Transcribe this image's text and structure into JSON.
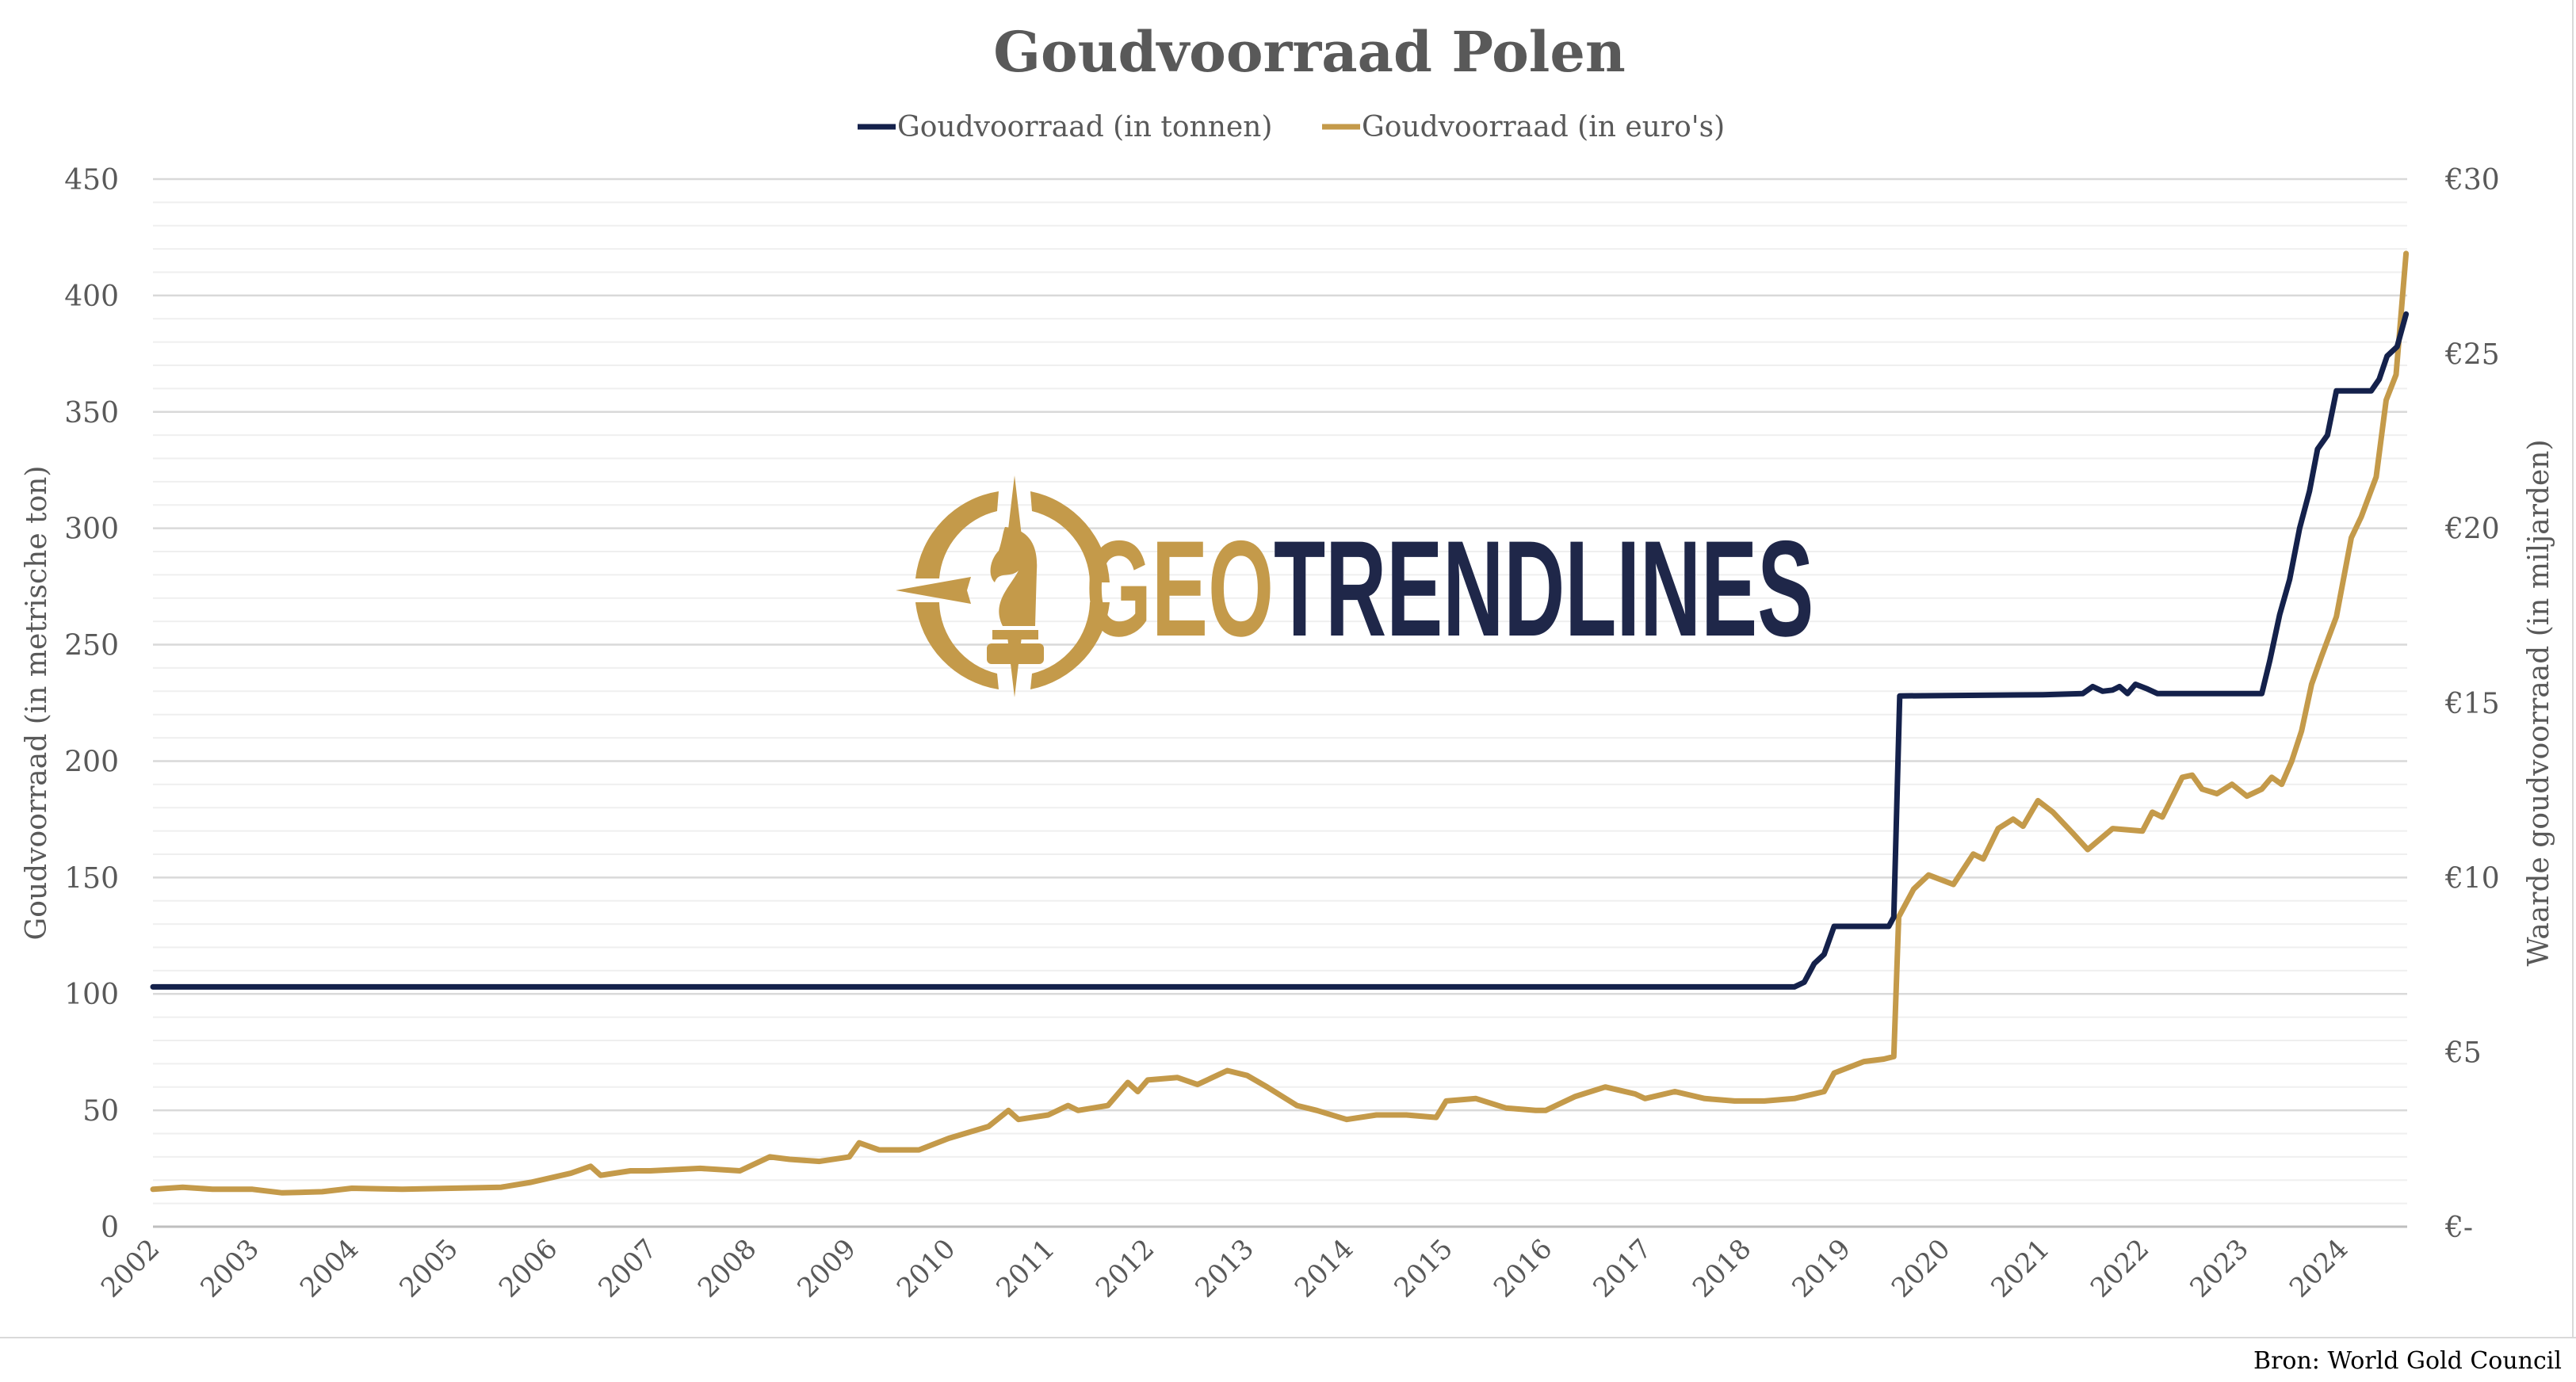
{
  "chart_data": {
    "type": "line",
    "title": "Goudvoorraad Polen",
    "ylabel": "Goudvoorraad (in metrische ton)",
    "y2label": "Waarde goudvoorraad (in miljarden)",
    "xlabel": "",
    "ylim": [
      0,
      450
    ],
    "y2lim": [
      0,
      30
    ],
    "xlim": [
      2002,
      2024.7
    ],
    "yticks": [
      "0",
      "50",
      "100",
      "150",
      "200",
      "250",
      "300",
      "350",
      "400",
      "450"
    ],
    "y2ticks": [
      "€-",
      "€5",
      "€10",
      "€15",
      "€20",
      "€25",
      "€30"
    ],
    "xticks": [
      "2002",
      "2003",
      "2004",
      "2005",
      "2006",
      "2007",
      "2008",
      "2009",
      "2010",
      "2011",
      "2012",
      "2013",
      "2014",
      "2015",
      "2016",
      "2017",
      "2018",
      "2019",
      "2020",
      "2021",
      "2022",
      "2023",
      "2024"
    ],
    "grid": true,
    "legend_position": "top-center",
    "source": "Bron: World Gold Council",
    "logo_text": [
      "GEO",
      "TRENDLINES"
    ],
    "series": [
      {
        "name": "Goudvoorraad (in tonnen)",
        "axis": "left",
        "color": "#14214b",
        "x": [
          2002.0,
          2018.5,
          2018.6,
          2018.7,
          2018.8,
          2018.9,
          2019.45,
          2019.5,
          2019.56,
          2021.0,
          2021.4,
          2021.5,
          2021.6,
          2021.7,
          2021.77,
          2021.85,
          2021.93,
          2022.05,
          2022.15,
          2023.2,
          2023.28,
          2023.38,
          2023.48,
          2023.58,
          2023.68,
          2023.76,
          2023.86,
          2023.95,
          2024.3,
          2024.38,
          2024.46,
          2024.56,
          2024.65
        ],
        "y": [
          103,
          103,
          105,
          113,
          117,
          129,
          129,
          133,
          228,
          228.5,
          229,
          232,
          230,
          230.5,
          232,
          229,
          233,
          231,
          229,
          229,
          243,
          263,
          278,
          300,
          316,
          334,
          340,
          359,
          359,
          364,
          374,
          378,
          392
        ]
      },
      {
        "name": "Goudvoorraad (in euro's)",
        "axis": "right",
        "color": "#c49a4a",
        "x": [
          2002.0,
          2002.3,
          2002.6,
          2003.0,
          2003.3,
          2003.7,
          2004.0,
          2004.5,
          2005.0,
          2005.5,
          2005.8,
          2006.2,
          2006.4,
          2006.5,
          2006.8,
          2007.0,
          2007.5,
          2007.9,
          2008.2,
          2008.4,
          2008.7,
          2009.0,
          2009.1,
          2009.3,
          2009.7,
          2010.0,
          2010.4,
          2010.6,
          2010.7,
          2011.0,
          2011.2,
          2011.3,
          2011.6,
          2011.8,
          2011.9,
          2012.0,
          2012.3,
          2012.5,
          2012.8,
          2013.0,
          2013.2,
          2013.5,
          2013.7,
          2014.0,
          2014.3,
          2014.6,
          2014.9,
          2015.0,
          2015.3,
          2015.6,
          2015.9,
          2016.0,
          2016.3,
          2016.6,
          2016.9,
          2017.0,
          2017.3,
          2017.6,
          2017.9,
          2018.2,
          2018.5,
          2018.8,
          2018.9,
          2019.2,
          2019.4,
          2019.5,
          2019.55,
          2019.7,
          2019.85,
          2020.1,
          2020.3,
          2020.4,
          2020.55,
          2020.7,
          2020.8,
          2020.95,
          2021.1,
          2021.3,
          2021.45,
          2021.7,
          2022.0,
          2022.1,
          2022.2,
          2022.4,
          2022.5,
          2022.6,
          2022.75,
          2022.9,
          2023.05,
          2023.2,
          2023.3,
          2023.4,
          2023.5,
          2023.6,
          2023.7,
          2023.8,
          2023.95,
          2024.1,
          2024.2,
          2024.35,
          2024.45,
          2024.55,
          2024.65
        ],
        "y": [
          1.07,
          1.13,
          1.07,
          1.07,
          0.97,
          1.0,
          1.1,
          1.07,
          1.1,
          1.13,
          1.27,
          1.53,
          1.73,
          1.47,
          1.6,
          1.6,
          1.67,
          1.6,
          2.0,
          1.93,
          1.87,
          2.0,
          2.4,
          2.2,
          2.2,
          2.53,
          2.87,
          3.33,
          3.07,
          3.2,
          3.47,
          3.33,
          3.47,
          4.13,
          3.87,
          4.2,
          4.27,
          4.07,
          4.47,
          4.33,
          4.0,
          3.47,
          3.33,
          3.07,
          3.2,
          3.2,
          3.13,
          3.6,
          3.67,
          3.4,
          3.33,
          3.33,
          3.73,
          4.0,
          3.8,
          3.67,
          3.87,
          3.67,
          3.6,
          3.6,
          3.67,
          3.87,
          4.4,
          4.73,
          4.8,
          4.87,
          8.87,
          9.67,
          10.07,
          9.8,
          10.67,
          10.53,
          11.4,
          11.67,
          11.47,
          12.2,
          11.87,
          11.27,
          10.8,
          11.4,
          11.33,
          11.87,
          11.73,
          12.87,
          12.93,
          12.53,
          12.4,
          12.67,
          12.33,
          12.53,
          12.87,
          12.67,
          13.33,
          14.2,
          15.53,
          16.33,
          17.47,
          19.73,
          20.33,
          21.47,
          23.67,
          24.4,
          27.87
        ]
      }
    ]
  }
}
